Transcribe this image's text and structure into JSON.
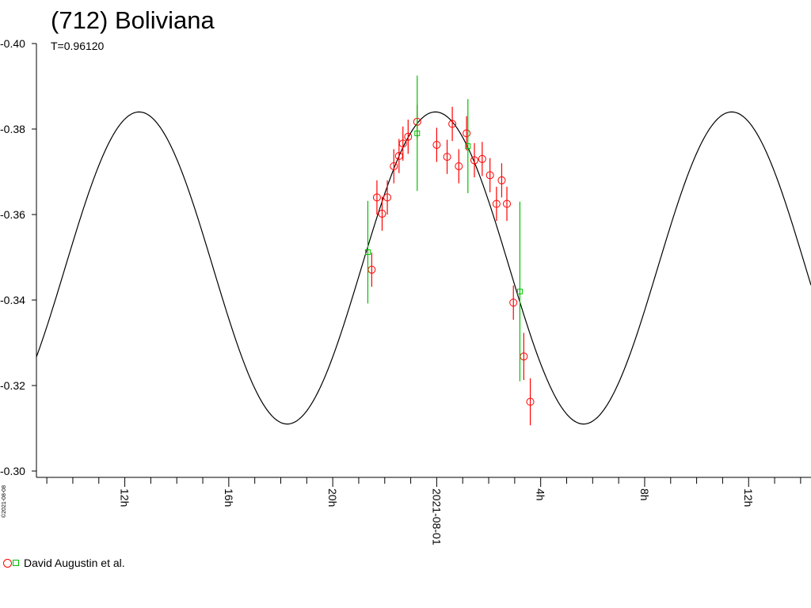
{
  "chart_data": {
    "type": "scatter",
    "title": "(712) Boliviana",
    "subtitle": "T=0.96120",
    "credit": "©2021-08-08",
    "ylim": [
      -0.4,
      -0.3
    ],
    "y_ticks": [
      -0.4,
      -0.38,
      -0.36,
      -0.34,
      -0.32,
      -0.3
    ],
    "y_tick_labels": [
      "-0.40",
      "-0.38",
      "-0.36",
      "-0.34",
      "-0.32",
      "-0.30"
    ],
    "x_range_hours": [
      8.6,
      38.4
    ],
    "x_labeled_ticks": [
      {
        "hours": 12,
        "label": "12h"
      },
      {
        "hours": 16,
        "label": "16h"
      },
      {
        "hours": 20,
        "label": "20h"
      },
      {
        "hours": 24,
        "label": "2021-08-01"
      },
      {
        "hours": 28,
        "label": "4h"
      },
      {
        "hours": 32,
        "label": "8h"
      },
      {
        "hours": 36,
        "label": "12h"
      }
    ],
    "x_minor_tick_step_hours": 1,
    "grid": false,
    "legend_position": "bottom-left",
    "model_curve": {
      "type": "sinusoid",
      "mean": -0.3475,
      "amplitude": 0.0365,
      "period_hours": 11.4,
      "max_at_hours": 23.95
    },
    "series": [
      {
        "name": "David Augustin et al.",
        "marker": "circle",
        "color": "#ff0000",
        "points": [
          {
            "x": 21.5,
            "y": -0.3471,
            "err": 0.004
          },
          {
            "x": 21.7,
            "y": -0.364,
            "err": 0.004
          },
          {
            "x": 21.9,
            "y": -0.3602,
            "err": 0.004
          },
          {
            "x": 22.1,
            "y": -0.364,
            "err": 0.004
          },
          {
            "x": 22.35,
            "y": -0.3713,
            "err": 0.004
          },
          {
            "x": 22.55,
            "y": -0.3737,
            "err": 0.004
          },
          {
            "x": 22.7,
            "y": -0.3766,
            "err": 0.004
          },
          {
            "x": 22.9,
            "y": -0.3782,
            "err": 0.004
          },
          {
            "x": 23.25,
            "y": -0.3817,
            "err": 0.004
          },
          {
            "x": 24.0,
            "y": -0.3763,
            "err": 0.004
          },
          {
            "x": 24.4,
            "y": -0.3735,
            "err": 0.004
          },
          {
            "x": 24.6,
            "y": -0.3812,
            "err": 0.004
          },
          {
            "x": 24.85,
            "y": -0.3713,
            "err": 0.004
          },
          {
            "x": 25.15,
            "y": -0.379,
            "err": 0.004
          },
          {
            "x": 25.45,
            "y": -0.3727,
            "err": 0.004
          },
          {
            "x": 25.75,
            "y": -0.373,
            "err": 0.004
          },
          {
            "x": 26.05,
            "y": -0.3692,
            "err": 0.004
          },
          {
            "x": 26.3,
            "y": -0.3625,
            "err": 0.004
          },
          {
            "x": 26.5,
            "y": -0.368,
            "err": 0.004
          },
          {
            "x": 26.7,
            "y": -0.3625,
            "err": 0.004
          },
          {
            "x": 26.95,
            "y": -0.3394,
            "err": 0.004
          },
          {
            "x": 27.35,
            "y": -0.3268,
            "err": 0.0055
          },
          {
            "x": 27.6,
            "y": -0.3162,
            "err": 0.0055
          }
        ]
      },
      {
        "name": "",
        "marker": "square",
        "color": "#00c000",
        "points": [
          {
            "x": 21.35,
            "y": -0.3512,
            "err": 0.012
          },
          {
            "x": 23.25,
            "y": -0.379,
            "err": 0.0135
          },
          {
            "x": 25.2,
            "y": -0.376,
            "err": 0.011
          },
          {
            "x": 27.2,
            "y": -0.342,
            "err": 0.021
          }
        ]
      }
    ],
    "legend_text": "David Augustin et al."
  }
}
